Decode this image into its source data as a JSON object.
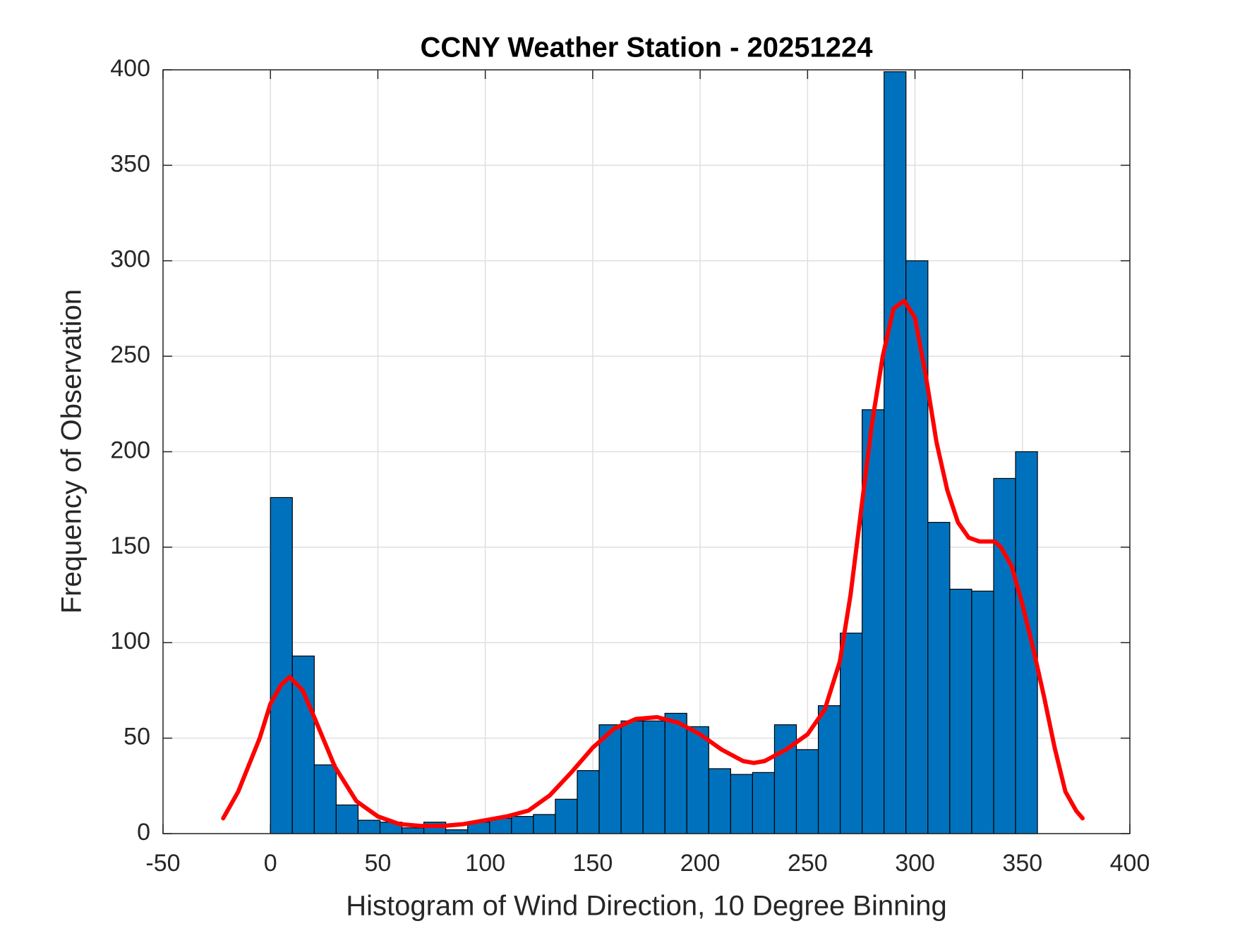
{
  "chart_data": {
    "type": "histogram",
    "title": "CCNY Weather Station - 20251224",
    "x_label": "Histogram of Wind Direction, 10 Degree Binning",
    "y_label": "Frequency of Observation",
    "bins": [
      0,
      10.2,
      20.4,
      30.6,
      40.8,
      51,
      61.2,
      71.4,
      81.6,
      91.8,
      102,
      112.2,
      122.4,
      132.6,
      142.8,
      153,
      163.2,
      173.4,
      183.6,
      193.8,
      204,
      214.2,
      224.4,
      234.6,
      244.8,
      255,
      265.2,
      275.4,
      285.6,
      295.8,
      306,
      316.2,
      326.4,
      336.6,
      346.8,
      357
    ],
    "values": [
      176,
      93,
      36,
      15,
      7,
      6,
      3,
      6,
      2,
      6,
      8,
      9,
      10,
      18,
      33,
      57,
      59,
      59,
      63,
      56,
      34,
      31,
      32,
      57,
      44,
      67,
      105,
      222,
      399,
      300,
      163,
      128,
      127,
      186,
      200
    ],
    "color": "#0072bd",
    "curve": {
      "color": "#ff0000",
      "x": [
        -22,
        -15,
        -5,
        0,
        5,
        9,
        15,
        20,
        30,
        40,
        50,
        60,
        70,
        80,
        90,
        100,
        110,
        120,
        130,
        140,
        150,
        160,
        170,
        180,
        190,
        200,
        210,
        220,
        225,
        230,
        240,
        250,
        258,
        265,
        270,
        275,
        280,
        285,
        290,
        295,
        300,
        305,
        310,
        315,
        320,
        325,
        330,
        337,
        340,
        345,
        350,
        355,
        360,
        365,
        370,
        375,
        378
      ],
      "y": [
        8,
        22,
        50,
        68,
        78,
        82,
        75,
        62,
        35,
        17,
        9,
        5,
        4,
        4,
        5,
        7,
        9,
        12,
        20,
        32,
        45,
        55,
        60,
        61,
        58,
        52,
        44,
        38,
        37,
        38,
        44,
        52,
        65,
        90,
        125,
        170,
        215,
        250,
        275,
        279,
        270,
        240,
        205,
        180,
        163,
        155,
        153,
        153,
        150,
        140,
        120,
        97,
        72,
        45,
        22,
        12,
        8
      ]
    },
    "xlim": [
      -50,
      400
    ],
    "xticks": [
      -50,
      0,
      50,
      100,
      150,
      200,
      250,
      300,
      350,
      400
    ],
    "ylim": [
      0,
      400
    ],
    "yticks": [
      0,
      50,
      100,
      150,
      200,
      250,
      300,
      350,
      400
    ],
    "grid": true
  }
}
